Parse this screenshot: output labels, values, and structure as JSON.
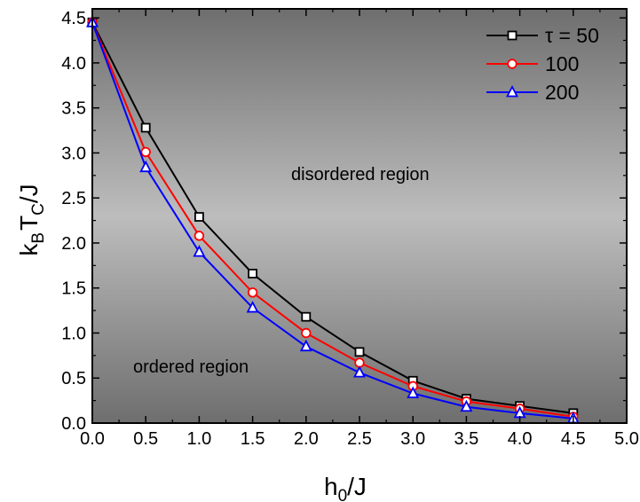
{
  "chart_data": {
    "type": "line",
    "xlabel": {
      "main": "h",
      "sub": "0",
      "rest": "/J"
    },
    "ylabel": {
      "k": "k",
      "k_sub": "B",
      "t": "T",
      "t_sub": "C",
      "rest": "/J"
    },
    "xlim": [
      0,
      5
    ],
    "ylim": [
      0,
      4.6
    ],
    "x_ticks": [
      "0.0",
      "0.5",
      "1.0",
      "1.5",
      "2.0",
      "2.5",
      "3.0",
      "3.5",
      "4.0",
      "4.5",
      "5.0"
    ],
    "y_ticks": [
      "0.0",
      "0.5",
      "1.0",
      "1.5",
      "2.0",
      "2.5",
      "3.0",
      "3.5",
      "4.0",
      "4.5"
    ],
    "x": [
      0,
      0.5,
      1.0,
      1.5,
      2.0,
      2.5,
      3.0,
      3.5,
      4.0,
      4.5
    ],
    "series": [
      {
        "name": "τ = 50",
        "marker": "square",
        "color": "#000000",
        "values": [
          4.45,
          3.28,
          2.29,
          1.66,
          1.18,
          0.79,
          0.47,
          0.27,
          0.19,
          0.11
        ]
      },
      {
        "name": "100",
        "marker": "circle",
        "color": "#ff0000",
        "values": [
          4.45,
          3.01,
          2.08,
          1.45,
          1.0,
          0.67,
          0.41,
          0.24,
          0.16,
          0.07
        ]
      },
      {
        "name": "200",
        "marker": "triangle",
        "color": "#0000ff",
        "values": [
          4.45,
          2.84,
          1.9,
          1.28,
          0.85,
          0.56,
          0.33,
          0.18,
          0.11,
          0.05
        ]
      }
    ],
    "annotations": {
      "disordered": "disordered region",
      "ordered": "ordered region"
    },
    "legend_position": "top-right",
    "background_gradient": [
      "#6e6e6e",
      "#bdbdbd",
      "#6e6e6e"
    ]
  }
}
